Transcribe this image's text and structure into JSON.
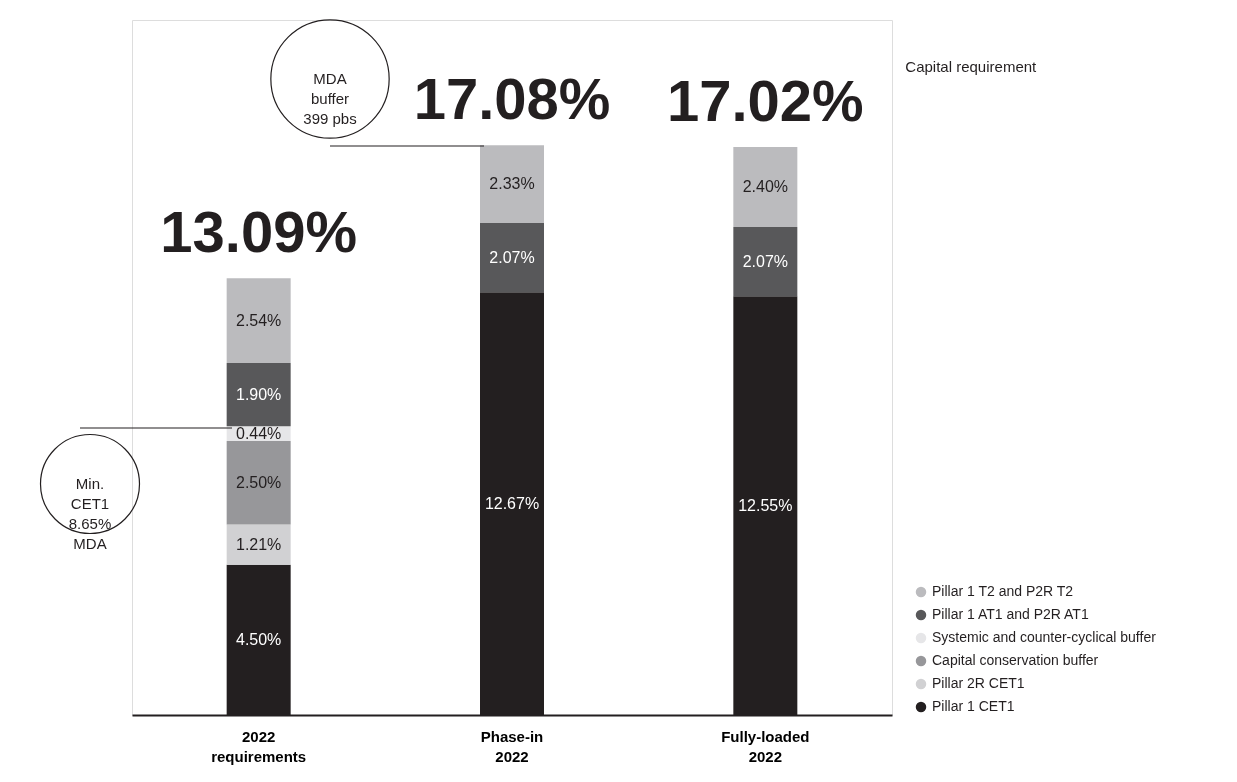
{
  "chart_data": {
    "type": "bar",
    "stacked": true,
    "categories": [
      "2022 requirements",
      "Phase-in 2022",
      "Fully-loaded 2022"
    ],
    "series": [
      {
        "name": "Pillar 1 CET1",
        "color": "#231f20",
        "values": [
          4.5,
          12.67,
          12.55
        ],
        "value_labels": [
          "4.50%",
          "12.67%",
          "12.55%"
        ]
      },
      {
        "name": "Pillar 2R CET1",
        "color": "#d1d1d3",
        "values": [
          1.21,
          null,
          null
        ],
        "value_labels": [
          "1.21%",
          null,
          null
        ]
      },
      {
        "name": "Capital conservation buffer",
        "color": "#97979a",
        "values": [
          2.5,
          null,
          null
        ],
        "value_labels": [
          "2.50%",
          null,
          null
        ]
      },
      {
        "name": "Systemic and counter-cyclical buffer",
        "color": "#e6e6e8",
        "values": [
          0.44,
          null,
          null
        ],
        "value_labels": [
          "0.44%",
          null,
          null
        ]
      },
      {
        "name": "Pillar 1 AT1 and P2R AT1",
        "color": "#58585a",
        "values": [
          1.9,
          2.07,
          2.07
        ],
        "value_labels": [
          "1.90%",
          "2.07%",
          "2.07%"
        ]
      },
      {
        "name": "Pillar 1 T2 and P2R T2",
        "color": "#bbbbbe",
        "values": [
          2.54,
          2.33,
          2.4
        ],
        "value_labels": [
          "2.54%",
          "2.33%",
          "2.40%"
        ]
      }
    ],
    "totals": [
      "13.09%",
      "17.08%",
      "17.02%"
    ],
    "annotations": [
      "Capital requirement",
      "MDA\nbuffer\n399 pbs",
      "Min.\nCET1\n8.65%\nMDA"
    ],
    "legend": "bottom right"
  }
}
